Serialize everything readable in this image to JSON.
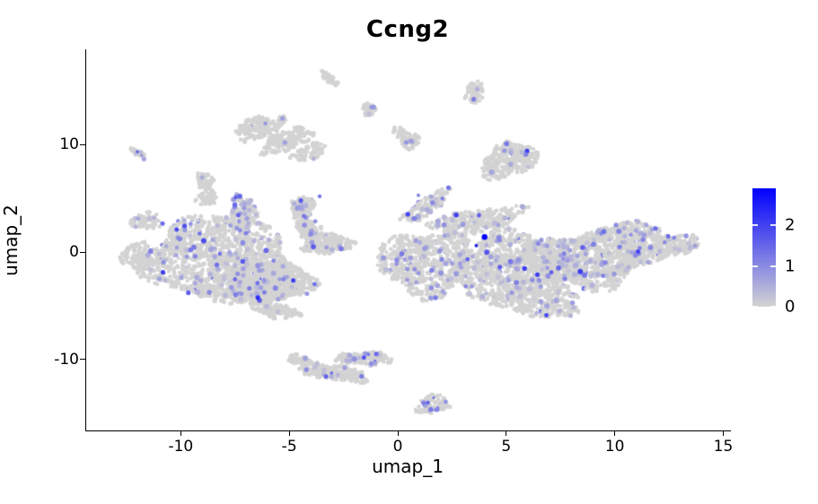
{
  "chart_data": {
    "type": "scatter",
    "title": "Ccng2",
    "xlabel": "umap_1",
    "ylabel": "umap_2",
    "xlim": [
      -14.4,
      15.31
    ],
    "ylim": [
      -16.65,
      18.91
    ],
    "xticks": [
      -10,
      -5,
      0,
      5,
      10,
      15
    ],
    "yticks": [
      -10,
      0,
      10
    ],
    "grid": false,
    "legend_position": "right",
    "seed": 7,
    "point_color_base": "#d3d3d3",
    "point_color_high": "#0000ff",
    "axis_color": "#000000",
    "colorbar": {
      "ticks": [
        2,
        1,
        0
      ],
      "vmin": 0,
      "vmax": 2.91,
      "low": "#d3d3d3",
      "high": "#0000ff"
    },
    "clusters": [
      {
        "name": "left-main-core",
        "cx": -8.0,
        "cy": -0.9,
        "rx": 3.7,
        "ry": 4.0,
        "rot": 8,
        "n": 1500,
        "expr_frac": 0.09
      },
      {
        "name": "left-west-bump",
        "cx": -11.6,
        "cy": 2.9,
        "rx": 0.7,
        "ry": 0.8,
        "rot": 0,
        "n": 60,
        "expr_frac": 0.05
      },
      {
        "name": "left-west-edge",
        "cx": -12.0,
        "cy": -0.4,
        "rx": 0.7,
        "ry": 1.3,
        "rot": 0,
        "n": 110,
        "expr_frac": 0.05
      },
      {
        "name": "left-north-prong-a",
        "cx": -7.1,
        "cy": 3.6,
        "rx": 0.62,
        "ry": 1.6,
        "rot": -12,
        "n": 170,
        "expr_frac": 0.18
      },
      {
        "name": "left-north-prong-b",
        "cx": -4.4,
        "cy": 4.0,
        "rx": 0.5,
        "ry": 1.3,
        "rot": 14,
        "n": 120,
        "expr_frac": 0.12
      },
      {
        "name": "left-prong-b-base",
        "cx": -4.1,
        "cy": 2.1,
        "rx": 0.55,
        "ry": 0.9,
        "rot": 0,
        "n": 90,
        "expr_frac": 0.1
      },
      {
        "name": "left-east-spur",
        "cx": -3.3,
        "cy": 0.8,
        "rx": 1.2,
        "ry": 1.0,
        "rot": 0,
        "n": 170,
        "expr_frac": 0.08
      },
      {
        "name": "left-southeast",
        "cx": -5.9,
        "cy": -2.9,
        "rx": 2.0,
        "ry": 1.8,
        "rot": -5,
        "n": 450,
        "expr_frac": 0.1
      },
      {
        "name": "left-south-tail",
        "cx": -5.7,
        "cy": -5.4,
        "rx": 1.2,
        "ry": 0.65,
        "rot": 12,
        "n": 110,
        "expr_frac": 0.06
      },
      {
        "name": "right-west-lobe",
        "cx": 1.3,
        "cy": -1.0,
        "rx": 2.2,
        "ry": 3.0,
        "rot": 0,
        "n": 600,
        "expr_frac": 0.09
      },
      {
        "name": "right-top-horn",
        "cx": 1.3,
        "cy": 4.3,
        "rx": 1.3,
        "ry": 0.8,
        "rot": -35,
        "n": 110,
        "expr_frac": 0.18
      },
      {
        "name": "right-top-ridge",
        "cx": 3.6,
        "cy": 2.9,
        "rx": 2.2,
        "ry": 1.1,
        "rot": -10,
        "n": 280,
        "expr_frac": 0.12
      },
      {
        "name": "right-center-mass",
        "cx": 5.4,
        "cy": -1.4,
        "rx": 2.8,
        "ry": 3.0,
        "rot": 0,
        "n": 850,
        "expr_frac": 0.13
      },
      {
        "name": "right-east-mass",
        "cx": 8.7,
        "cy": -0.7,
        "rx": 2.6,
        "ry": 2.6,
        "rot": 0,
        "n": 800,
        "expr_frac": 0.15
      },
      {
        "name": "right-east-taper",
        "cx": 11.9,
        "cy": 0.4,
        "rx": 1.9,
        "ry": 1.3,
        "rot": -8,
        "n": 280,
        "expr_frac": 0.12
      },
      {
        "name": "right-south-bulge",
        "cx": 6.4,
        "cy": -4.7,
        "rx": 2.1,
        "ry": 1.3,
        "rot": 4,
        "n": 260,
        "expr_frac": 0.1
      },
      {
        "name": "right-ne-shelf",
        "cx": 10.5,
        "cy": 1.9,
        "rx": 1.5,
        "ry": 0.8,
        "rot": -5,
        "n": 160,
        "expr_frac": 0.12
      },
      {
        "name": "topleft-arch-a",
        "cx": -6.4,
        "cy": 11.6,
        "rx": 1.15,
        "ry": 1.0,
        "rot": -15,
        "n": 160,
        "expr_frac": 0.02
      },
      {
        "name": "topleft-arch-b",
        "cx": -5.1,
        "cy": 10.4,
        "rx": 1.25,
        "ry": 0.95,
        "rot": -20,
        "n": 160,
        "expr_frac": 0.02
      },
      {
        "name": "topleft-arch-c",
        "cx": -4.1,
        "cy": 9.3,
        "rx": 0.85,
        "ry": 0.65,
        "rot": -20,
        "n": 70,
        "expr_frac": 0.02
      },
      {
        "name": "midleft-wiggle-a",
        "cx": -8.9,
        "cy": 6.6,
        "rx": 0.45,
        "ry": 0.75,
        "rot": 20,
        "n": 45,
        "expr_frac": 0.03
      },
      {
        "name": "midleft-wiggle-b",
        "cx": -8.8,
        "cy": 5.0,
        "rx": 0.5,
        "ry": 0.7,
        "rot": -15,
        "n": 45,
        "expr_frac": 0.03
      },
      {
        "name": "tiny-left",
        "cx": -11.95,
        "cy": 9.2,
        "rx": 0.45,
        "ry": 0.28,
        "rot": 32,
        "n": 26,
        "expr_frac": 0.15
      },
      {
        "name": "top-diag-blob",
        "cx": -3.1,
        "cy": 16.1,
        "rx": 0.5,
        "ry": 0.33,
        "rot": 38,
        "n": 40,
        "expr_frac": 0.02
      },
      {
        "name": "small-oval",
        "cx": -1.3,
        "cy": 13.3,
        "rx": 0.36,
        "ry": 0.6,
        "rot": 25,
        "n": 34,
        "expr_frac": 0.08
      },
      {
        "name": "t-blob-a",
        "cx": 0.0,
        "cy": 11.3,
        "rx": 0.28,
        "ry": 0.55,
        "rot": 0,
        "n": 26,
        "expr_frac": 0.03
      },
      {
        "name": "t-blob-b",
        "cx": 0.55,
        "cy": 10.4,
        "rx": 0.42,
        "ry": 0.75,
        "rot": -20,
        "n": 50,
        "expr_frac": 0.03
      },
      {
        "name": "comma-blob",
        "cx": 3.55,
        "cy": 14.9,
        "rx": 0.4,
        "ry": 1.1,
        "rot": 18,
        "n": 60,
        "expr_frac": 0.04
      },
      {
        "name": "right-mid-blob",
        "cx": 5.1,
        "cy": 8.5,
        "rx": 1.4,
        "ry": 1.5,
        "rot": -18,
        "n": 280,
        "expr_frac": 0.05
      },
      {
        "name": "bottom-arch-a",
        "cx": -4.6,
        "cy": -10.0,
        "rx": 0.5,
        "ry": 0.45,
        "rot": 0,
        "n": 35,
        "expr_frac": 0.05
      },
      {
        "name": "bottom-arch-b",
        "cx": -3.7,
        "cy": -11.0,
        "rx": 1.0,
        "ry": 0.7,
        "rot": 15,
        "n": 140,
        "expr_frac": 0.06
      },
      {
        "name": "bottom-arch-c",
        "cx": -2.5,
        "cy": -11.4,
        "rx": 1.1,
        "ry": 0.65,
        "rot": 8,
        "n": 130,
        "expr_frac": 0.06
      },
      {
        "name": "bottom-arch-d",
        "cx": -2.2,
        "cy": -9.9,
        "rx": 0.7,
        "ry": 0.55,
        "rot": 0,
        "n": 70,
        "expr_frac": 0.1
      },
      {
        "name": "bottom-arch-e",
        "cx": -1.1,
        "cy": -9.9,
        "rx": 0.75,
        "ry": 0.7,
        "rot": 0,
        "n": 80,
        "expr_frac": 0.15
      },
      {
        "name": "bottom-small",
        "cx": 1.6,
        "cy": -14.2,
        "rx": 0.75,
        "ry": 0.9,
        "rot": -10,
        "n": 90,
        "expr_frac": 0.06
      }
    ],
    "highlight_points": [
      {
        "x": 4.0,
        "y": 1.4,
        "v": 2.9,
        "r": 3.2
      },
      {
        "x": 3.62,
        "y": 0.6,
        "v": 2.6,
        "r": 1.8
      },
      {
        "x": -6.45,
        "y": -4.25,
        "v": 2.3,
        "r": 2.6
      },
      {
        "x": -9.65,
        "y": -3.8,
        "v": 1.6,
        "r": 2.6
      },
      {
        "x": -7.5,
        "y": -2.55,
        "v": 1.4,
        "r": 2.4
      },
      {
        "x": -7.35,
        "y": 3.45,
        "v": 1.5,
        "r": 2.6
      },
      {
        "x": -7.0,
        "y": 1.75,
        "v": 1.2,
        "r": 2.4
      },
      {
        "x": -3.6,
        "y": 5.2,
        "v": 1.3,
        "r": 2.2
      },
      {
        "x": 5.9,
        "y": 9.1,
        "v": 1.1,
        "r": 2.6
      },
      {
        "x": 3.5,
        "y": 14.25,
        "v": 1.2,
        "r": 2.6
      },
      {
        "x": -12.0,
        "y": 9.35,
        "v": 1.8,
        "r": 1.4
      },
      {
        "x": -11.8,
        "y": 9.0,
        "v": 1.1,
        "r": 1.4
      },
      {
        "x": 1.65,
        "y": -13.6,
        "v": 1.7,
        "r": 1.3
      },
      {
        "x": 1.85,
        "y": -14.5,
        "v": 1.2,
        "r": 1.3
      },
      {
        "x": -1.35,
        "y": -9.55,
        "v": 1.3,
        "r": 1.8
      },
      {
        "x": -1.05,
        "y": -10.15,
        "v": 1.2,
        "r": 1.6
      },
      {
        "x": -3.05,
        "y": -11.3,
        "v": 1.5,
        "r": 1.8
      },
      {
        "x": -6.1,
        "y": 12.0,
        "v": 0.9,
        "r": 2.2
      },
      {
        "x": 2.05,
        "y": 5.0,
        "v": 1.2,
        "r": 2.0
      },
      {
        "x": 0.95,
        "y": 5.3,
        "v": 1.1,
        "r": 2.0
      },
      {
        "x": 12.3,
        "y": 0.9,
        "v": 1.0,
        "r": 2.2
      }
    ]
  },
  "legend": {
    "tick_labels": [
      "2",
      "1",
      "0"
    ]
  }
}
